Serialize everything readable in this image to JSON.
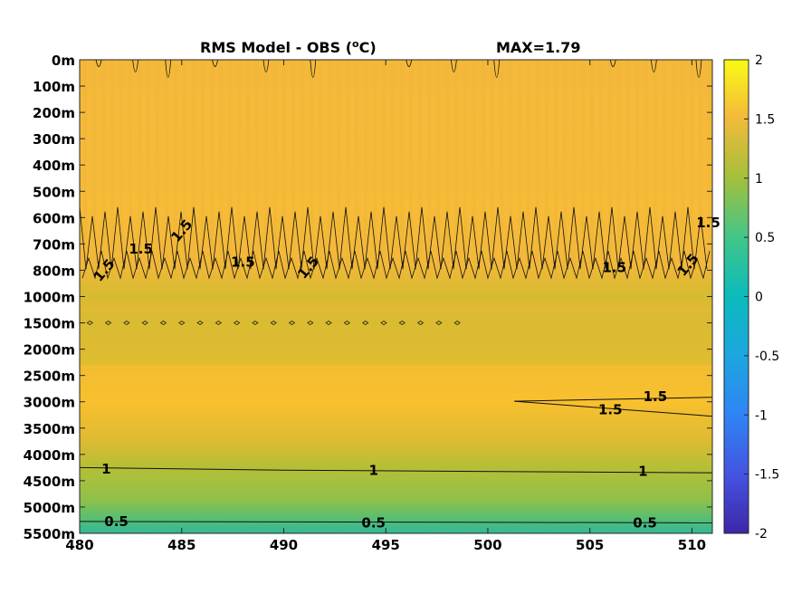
{
  "chart_data": {
    "type": "heatmap",
    "title": "RMS Model - OBS (",
    "title_unit_sup": "o",
    "title_unit_end": "C)",
    "max_label": "MAX=1.79",
    "x": {
      "ticks": [
        480,
        485,
        490,
        495,
        500,
        505,
        510
      ],
      "range": [
        480,
        511
      ]
    },
    "y": {
      "ticks": [
        "0m",
        "100m",
        "200m",
        "300m",
        "400m",
        "500m",
        "600m",
        "700m",
        "800m",
        "1000m",
        "1500m",
        "2000m",
        "2500m",
        "3000m",
        "3500m",
        "4000m",
        "4500m",
        "5000m",
        "5500m"
      ]
    },
    "colorbar": {
      "range": [
        -2,
        2
      ],
      "ticks": [
        "2",
        "1.5",
        "1",
        "0.5",
        "0",
        "-0.5",
        "-1",
        "-1.5",
        "-2"
      ]
    },
    "profile_by_depth_level": [
      {
        "level": 0,
        "value": 1.35
      },
      {
        "level": 1,
        "value": 1.35
      },
      {
        "level": 2,
        "value": 1.38
      },
      {
        "level": 3,
        "value": 1.38
      },
      {
        "level": 4,
        "value": 1.38
      },
      {
        "level": 5,
        "value": 1.38
      },
      {
        "level": 6,
        "value": 1.45
      },
      {
        "level": 7,
        "value": 1.5
      },
      {
        "level": 8,
        "value": 1.48
      },
      {
        "level": 9,
        "value": 1.35
      },
      {
        "level": 10,
        "value": 1.2
      },
      {
        "level": 11,
        "value": 1.35
      },
      {
        "level": 12,
        "value": 1.42
      },
      {
        "level": 13,
        "value": 1.48
      },
      {
        "level": 14,
        "value": 1.4
      },
      {
        "level": 15,
        "value": 1.2
      },
      {
        "level": 16,
        "value": 0.95
      },
      {
        "level": 17,
        "value": 0.75
      },
      {
        "level": 18,
        "value": 0.45
      }
    ],
    "contour_labels": [
      {
        "text": "1.5",
        "x": 508.2,
        "level": 12.8
      },
      {
        "text": "1.5",
        "x": 506.0,
        "level": 13.3
      },
      {
        "text": "1",
        "x": 481.3,
        "level": 15.55
      },
      {
        "text": "1",
        "x": 494.4,
        "level": 15.6
      },
      {
        "text": "1",
        "x": 507.6,
        "level": 15.65
      },
      {
        "text": "0.5",
        "x": 481.8,
        "level": 17.55
      },
      {
        "text": "0.5",
        "x": 494.4,
        "level": 17.6
      },
      {
        "text": "0.5",
        "x": 507.7,
        "level": 17.6
      },
      {
        "text": "1.5",
        "x": 481.2,
        "level": 8.0
      },
      {
        "text": "1.5",
        "x": 483.0,
        "level": 7.2
      },
      {
        "text": "1.5",
        "x": 485.0,
        "level": 6.5
      },
      {
        "text": "1.5",
        "x": 488.0,
        "level": 7.7
      },
      {
        "text": "1.5",
        "x": 491.2,
        "level": 7.9
      },
      {
        "text": "1.5",
        "x": 506.2,
        "level": 7.9
      },
      {
        "text": "1.5",
        "x": 509.8,
        "level": 7.8
      },
      {
        "text": "1.5",
        "x": 510.8,
        "level": 6.2
      }
    ]
  }
}
